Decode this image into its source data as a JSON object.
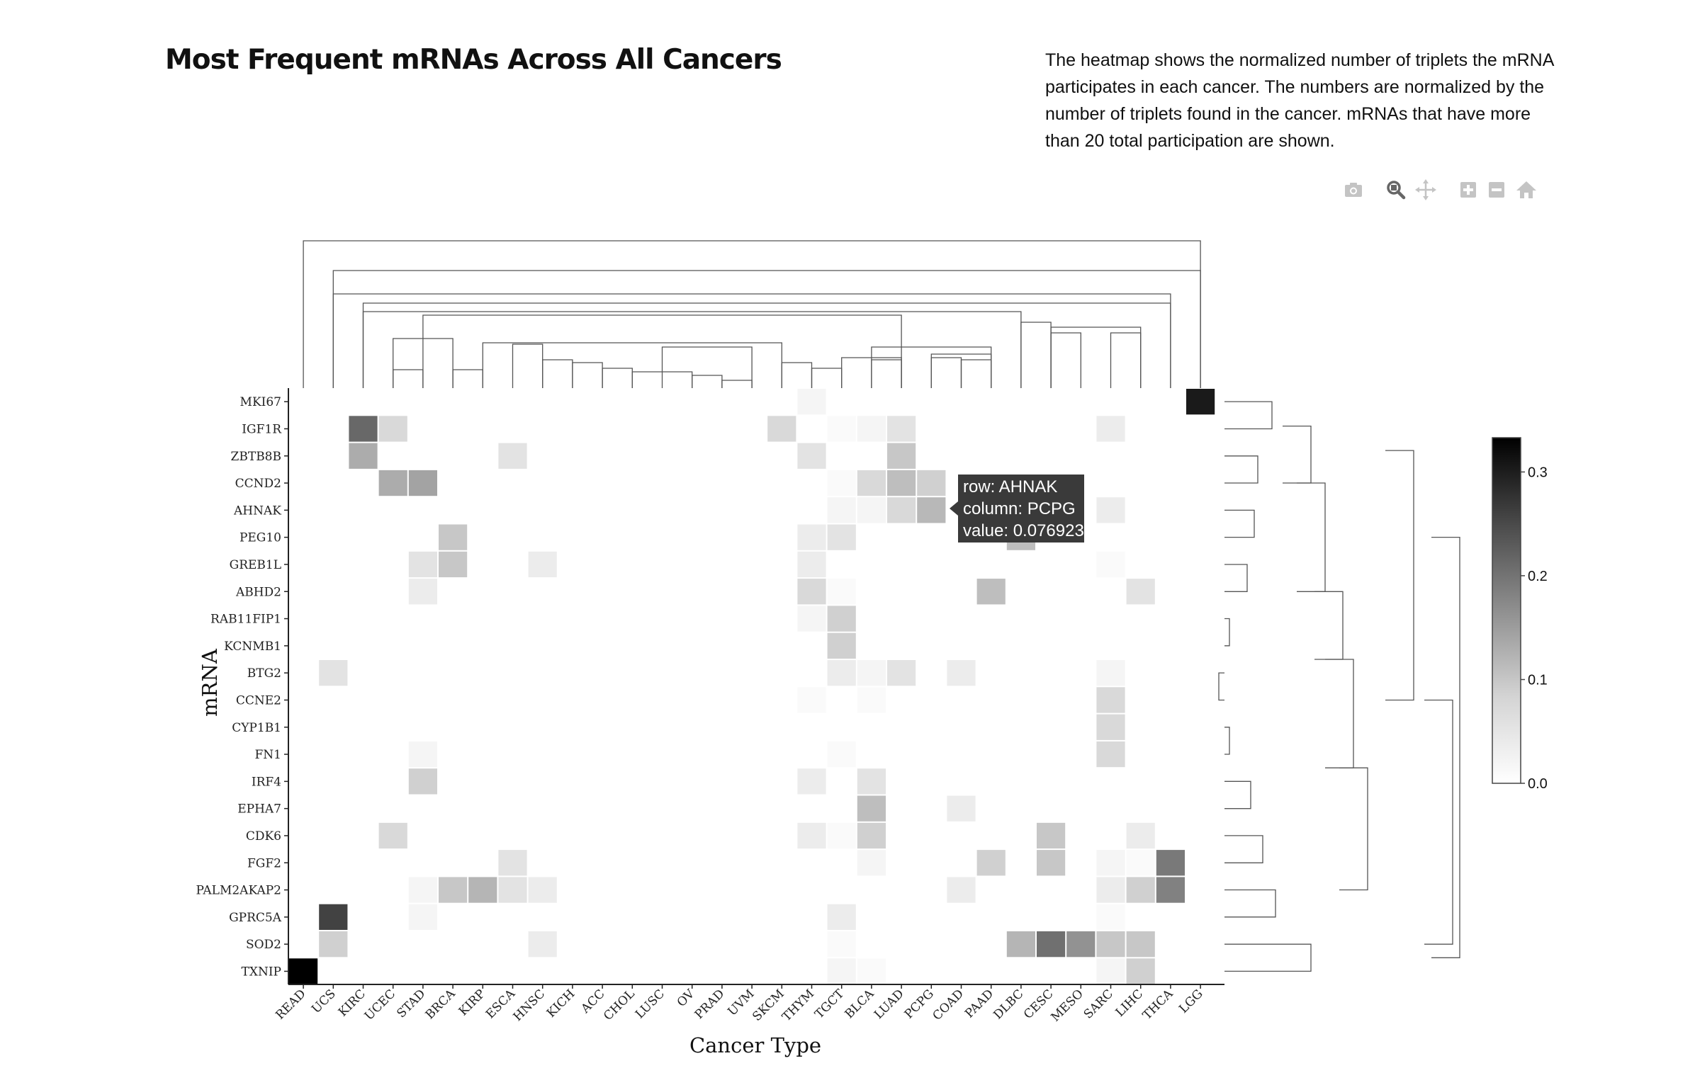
{
  "title": "Most Frequent mRNAs Across All Cancers",
  "description": "The heatmap shows the normalized number of triplets the mRNA participates in each cancer. The numbers are normalized by the number of triplets found in the cancer. mRNAs that have more than 20 total participation are shown.",
  "modebar": {
    "buttons": [
      {
        "name": "camera-icon",
        "label": "Download plot as a png"
      },
      {
        "name": "zoom-icon",
        "label": "Zoom"
      },
      {
        "name": "pan-icon",
        "label": "Pan"
      },
      {
        "name": "zoom-in-icon",
        "label": "Zoom in"
      },
      {
        "name": "zoom-out-icon",
        "label": "Zoom out"
      },
      {
        "name": "home-icon",
        "label": "Reset axes"
      }
    ]
  },
  "tooltip": {
    "row_line": "row: AHNAK",
    "column_line": "column: PCPG",
    "value_line": "value: 0.076923",
    "row": "AHNAK",
    "column": "PCPG"
  },
  "chart_data": {
    "type": "heatmap",
    "title": "",
    "xlabel": "Cancer Type",
    "ylabel": "mRNA",
    "x": [
      "READ",
      "UCS",
      "KIRC",
      "UCEC",
      "STAD",
      "BRCA",
      "KIRP",
      "ESCA",
      "HNSC",
      "KICH",
      "ACC",
      "CHOL",
      "LUSC",
      "OV",
      "PRAD",
      "UVM",
      "SKCM",
      "THYM",
      "TGCT",
      "BLCA",
      "LUAD",
      "PCPG",
      "COAD",
      "PAAD",
      "DLBC",
      "CESC",
      "MESO",
      "SARC",
      "LIHC",
      "THCA",
      "LGG"
    ],
    "y": [
      "MKI67",
      "IGF1R",
      "ZBTB8B",
      "CCND2",
      "AHNAK",
      "PEG10",
      "GREB1L",
      "ABHD2",
      "RAB11FIP1",
      "KCNMB1",
      "BTG2",
      "CCNE2",
      "CYP1B1",
      "FN1",
      "IRF4",
      "EPHA7",
      "CDK6",
      "FGF2",
      "PALM2AKAP2",
      "GPRC5A",
      "SOD2",
      "TXNIP"
    ],
    "colorscale": {
      "min_color": "#ffffff",
      "max_color": "#000000",
      "zmin": 0,
      "zmax": 0.333
    },
    "colorbar_ticks": [
      "0.0",
      "0.1",
      "0.2",
      "0.3"
    ],
    "colorbar_tick_values": [
      0,
      0.1,
      0.2,
      0.3
    ],
    "cells": [
      {
        "row": "MKI67",
        "col": "THYM",
        "v": 0.01
      },
      {
        "row": "MKI67",
        "col": "LGG",
        "v": 0.28
      },
      {
        "row": "IGF1R",
        "col": "KIRC",
        "v": 0.17
      },
      {
        "row": "IGF1R",
        "col": "UCEC",
        "v": 0.04
      },
      {
        "row": "IGF1R",
        "col": "SKCM",
        "v": 0.04
      },
      {
        "row": "IGF1R",
        "col": "TGCT",
        "v": 0.005
      },
      {
        "row": "IGF1R",
        "col": "BLCA",
        "v": 0.01
      },
      {
        "row": "IGF1R",
        "col": "LUAD",
        "v": 0.03
      },
      {
        "row": "IGF1R",
        "col": "SARC",
        "v": 0.02
      },
      {
        "row": "ZBTB8B",
        "col": "KIRC",
        "v": 0.09
      },
      {
        "row": "ZBTB8B",
        "col": "ESCA",
        "v": 0.03
      },
      {
        "row": "ZBTB8B",
        "col": "THYM",
        "v": 0.03
      },
      {
        "row": "ZBTB8B",
        "col": "LUAD",
        "v": 0.06
      },
      {
        "row": "CCND2",
        "col": "UCEC",
        "v": 0.09
      },
      {
        "row": "CCND2",
        "col": "STAD",
        "v": 0.1
      },
      {
        "row": "CCND2",
        "col": "TGCT",
        "v": 0.005
      },
      {
        "row": "CCND2",
        "col": "BLCA",
        "v": 0.04
      },
      {
        "row": "CCND2",
        "col": "LUAD",
        "v": 0.07
      },
      {
        "row": "CCND2",
        "col": "PCPG",
        "v": 0.05
      },
      {
        "row": "AHNAK",
        "col": "TGCT",
        "v": 0.01
      },
      {
        "row": "AHNAK",
        "col": "BLCA",
        "v": 0.01
      },
      {
        "row": "AHNAK",
        "col": "LUAD",
        "v": 0.04
      },
      {
        "row": "AHNAK",
        "col": "PCPG",
        "v": 0.076923
      },
      {
        "row": "AHNAK",
        "col": "SARC",
        "v": 0.02
      },
      {
        "row": "PEG10",
        "col": "BRCA",
        "v": 0.06
      },
      {
        "row": "PEG10",
        "col": "THYM",
        "v": 0.02
      },
      {
        "row": "PEG10",
        "col": "TGCT",
        "v": 0.03
      },
      {
        "row": "PEG10",
        "col": "DLBC",
        "v": 0.07
      },
      {
        "row": "GREB1L",
        "col": "STAD",
        "v": 0.03
      },
      {
        "row": "GREB1L",
        "col": "BRCA",
        "v": 0.06
      },
      {
        "row": "GREB1L",
        "col": "HNSC",
        "v": 0.02
      },
      {
        "row": "GREB1L",
        "col": "THYM",
        "v": 0.02
      },
      {
        "row": "GREB1L",
        "col": "SARC",
        "v": 0.005
      },
      {
        "row": "ABHD2",
        "col": "STAD",
        "v": 0.02
      },
      {
        "row": "ABHD2",
        "col": "THYM",
        "v": 0.04
      },
      {
        "row": "ABHD2",
        "col": "TGCT",
        "v": 0.005
      },
      {
        "row": "ABHD2",
        "col": "PAAD",
        "v": 0.07
      },
      {
        "row": "ABHD2",
        "col": "LIHC",
        "v": 0.03
      },
      {
        "row": "RAB11FIP1",
        "col": "THYM",
        "v": 0.01
      },
      {
        "row": "RAB11FIP1",
        "col": "TGCT",
        "v": 0.05
      },
      {
        "row": "KCNMB1",
        "col": "TGCT",
        "v": 0.05
      },
      {
        "row": "BTG2",
        "col": "UCS",
        "v": 0.03
      },
      {
        "row": "BTG2",
        "col": "TGCT",
        "v": 0.02
      },
      {
        "row": "BTG2",
        "col": "BLCA",
        "v": 0.01
      },
      {
        "row": "BTG2",
        "col": "LUAD",
        "v": 0.03
      },
      {
        "row": "BTG2",
        "col": "COAD",
        "v": 0.02
      },
      {
        "row": "BTG2",
        "col": "SARC",
        "v": 0.01
      },
      {
        "row": "CCNE2",
        "col": "THYM",
        "v": 0.005
      },
      {
        "row": "CCNE2",
        "col": "BLCA",
        "v": 0.005
      },
      {
        "row": "CCNE2",
        "col": "SARC",
        "v": 0.04
      },
      {
        "row": "CYP1B1",
        "col": "SARC",
        "v": 0.04
      },
      {
        "row": "FN1",
        "col": "STAD",
        "v": 0.01
      },
      {
        "row": "FN1",
        "col": "TGCT",
        "v": 0.005
      },
      {
        "row": "FN1",
        "col": "SARC",
        "v": 0.04
      },
      {
        "row": "IRF4",
        "col": "STAD",
        "v": 0.05
      },
      {
        "row": "IRF4",
        "col": "THYM",
        "v": 0.02
      },
      {
        "row": "IRF4",
        "col": "BLCA",
        "v": 0.03
      },
      {
        "row": "EPHA7",
        "col": "BLCA",
        "v": 0.07
      },
      {
        "row": "EPHA7",
        "col": "COAD",
        "v": 0.02
      },
      {
        "row": "CDK6",
        "col": "UCEC",
        "v": 0.04
      },
      {
        "row": "CDK6",
        "col": "THYM",
        "v": 0.02
      },
      {
        "row": "CDK6",
        "col": "TGCT",
        "v": 0.005
      },
      {
        "row": "CDK6",
        "col": "BLCA",
        "v": 0.05
      },
      {
        "row": "CDK6",
        "col": "CESC",
        "v": 0.06
      },
      {
        "row": "CDK6",
        "col": "LIHC",
        "v": 0.02
      },
      {
        "row": "FGF2",
        "col": "ESCA",
        "v": 0.03
      },
      {
        "row": "FGF2",
        "col": "BLCA",
        "v": 0.01
      },
      {
        "row": "FGF2",
        "col": "PAAD",
        "v": 0.05
      },
      {
        "row": "FGF2",
        "col": "CESC",
        "v": 0.06
      },
      {
        "row": "FGF2",
        "col": "SARC",
        "v": 0.01
      },
      {
        "row": "FGF2",
        "col": "LIHC",
        "v": 0.005
      },
      {
        "row": "FGF2",
        "col": "THCA",
        "v": 0.15
      },
      {
        "row": "PALM2AKAP2",
        "col": "STAD",
        "v": 0.01
      },
      {
        "row": "PALM2AKAP2",
        "col": "BRCA",
        "v": 0.06
      },
      {
        "row": "PALM2AKAP2",
        "col": "KIRP",
        "v": 0.08
      },
      {
        "row": "PALM2AKAP2",
        "col": "ESCA",
        "v": 0.03
      },
      {
        "row": "PALM2AKAP2",
        "col": "HNSC",
        "v": 0.02
      },
      {
        "row": "PALM2AKAP2",
        "col": "COAD",
        "v": 0.02
      },
      {
        "row": "PALM2AKAP2",
        "col": "SARC",
        "v": 0.02
      },
      {
        "row": "PALM2AKAP2",
        "col": "LIHC",
        "v": 0.05
      },
      {
        "row": "PALM2AKAP2",
        "col": "THCA",
        "v": 0.14
      },
      {
        "row": "GPRC5A",
        "col": "UCS",
        "v": 0.22
      },
      {
        "row": "GPRC5A",
        "col": "STAD",
        "v": 0.01
      },
      {
        "row": "GPRC5A",
        "col": "TGCT",
        "v": 0.02
      },
      {
        "row": "GPRC5A",
        "col": "SARC",
        "v": 0.005
      },
      {
        "row": "SOD2",
        "col": "UCS",
        "v": 0.05
      },
      {
        "row": "SOD2",
        "col": "HNSC",
        "v": 0.02
      },
      {
        "row": "SOD2",
        "col": "TGCT",
        "v": 0.005
      },
      {
        "row": "SOD2",
        "col": "DLBC",
        "v": 0.08
      },
      {
        "row": "SOD2",
        "col": "CESC",
        "v": 0.16
      },
      {
        "row": "SOD2",
        "col": "MESO",
        "v": 0.12
      },
      {
        "row": "SOD2",
        "col": "SARC",
        "v": 0.06
      },
      {
        "row": "SOD2",
        "col": "LIHC",
        "v": 0.06
      },
      {
        "row": "TXNIP",
        "col": "READ",
        "v": 0.333
      },
      {
        "row": "TXNIP",
        "col": "TGCT",
        "v": 0.01
      },
      {
        "row": "TXNIP",
        "col": "BLCA",
        "v": 0.005
      },
      {
        "row": "TXNIP",
        "col": "SARC",
        "v": 0.01
      },
      {
        "row": "TXNIP",
        "col": "LIHC",
        "v": 0.05
      }
    ],
    "dendrogram_top_links": [
      [
        "UCEC",
        "STAD"
      ],
      [
        "BRCA",
        "KIRP"
      ],
      [
        "PRAD",
        "UVM"
      ],
      [
        "OV",
        "PRAD"
      ],
      [
        "CHOL",
        "OV"
      ],
      [
        "ACC",
        "CHOL"
      ],
      [
        "KICH",
        "ACC"
      ],
      [
        "HNSC",
        "KICH"
      ],
      [
        "LUSC",
        "UVM"
      ],
      [
        "ESCA",
        "HNSC"
      ],
      [
        "THYM",
        "TGCT"
      ],
      [
        "SKCM",
        "THYM"
      ],
      [
        "BLCA",
        "LUAD"
      ],
      [
        "TGCT",
        "LUAD"
      ],
      [
        "PCPG",
        "COAD"
      ],
      [
        "COAD",
        "PAAD"
      ],
      [
        "PCPG",
        "PAAD"
      ],
      [
        "BLCA",
        "PAAD"
      ],
      [
        "KIRP",
        "SKCM"
      ],
      [
        "UCEC",
        "BRCA"
      ],
      [
        "CESC",
        "MESO"
      ],
      [
        "SARC",
        "LIHC"
      ],
      [
        "CESC",
        "LIHC"
      ],
      [
        "DLBC",
        "CESC"
      ],
      [
        "STAD",
        "LUAD"
      ],
      [
        "KIRC",
        "DLBC"
      ],
      [
        "KIRC",
        "THCA"
      ],
      [
        "UCS",
        "THCA"
      ],
      [
        "UCS",
        "LGG"
      ],
      [
        "READ",
        "LGG"
      ]
    ],
    "dendrogram_right_links": [
      [
        "MKI67",
        "IGF1R"
      ],
      [
        "ZBTB8B",
        "CCND2"
      ],
      [
        "AHNAK",
        "PEG10"
      ],
      [
        "GREB1L",
        "ABHD2"
      ],
      [
        "RAB11FIP1",
        "KCNMB1"
      ],
      [
        "BTG2",
        "CCNE2"
      ],
      [
        "CYP1B1",
        "FN1"
      ],
      [
        "IRF4",
        "EPHA7"
      ],
      [
        "CDK6",
        "FGF2"
      ],
      [
        "PALM2AKAP2",
        "GPRC5A"
      ],
      [
        "SOD2",
        "TXNIP"
      ]
    ]
  }
}
